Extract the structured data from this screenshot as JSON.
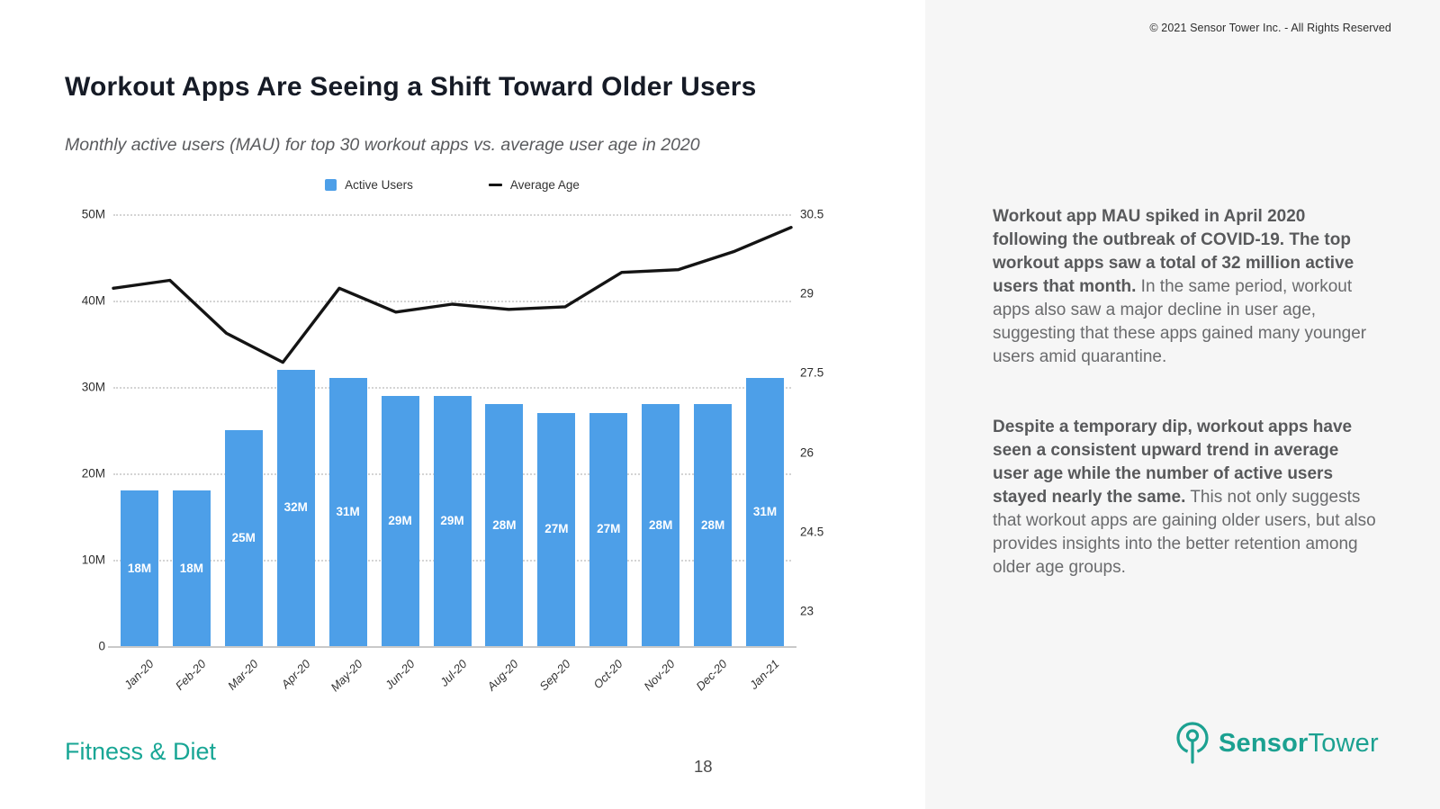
{
  "copyright": "© 2021 Sensor Tower Inc. - All Rights Reserved",
  "header": {
    "title": "Workout Apps Are Seeing a Shift Toward Older Users",
    "subtitle": "Monthly active users (MAU) for top 30 workout apps vs. average user age in 2020"
  },
  "chart_data": {
    "type": "bar+line",
    "title": "Monthly active users (MAU) for top 30 workout apps vs. average user age in 2020",
    "categories": [
      "Jan-20",
      "Feb-20",
      "Mar-20",
      "Apr-20",
      "May-20",
      "Jun-20",
      "Jul-20",
      "Aug-20",
      "Sep-20",
      "Oct-20",
      "Nov-20",
      "Dec-20",
      "Jan-21"
    ],
    "series": [
      {
        "name": "Active Users",
        "type": "bar",
        "axis": "left",
        "color": "#4D9FE8",
        "values_millions": [
          18,
          18,
          25,
          32,
          31,
          29,
          29,
          28,
          27,
          27,
          28,
          28,
          31
        ],
        "labels": [
          "18M",
          "18M",
          "25M",
          "32M",
          "31M",
          "29M",
          "29M",
          "28M",
          "27M",
          "27M",
          "28M",
          "28M",
          "31M"
        ]
      },
      {
        "name": "Average Age",
        "type": "line",
        "axis": "right",
        "color": "#141414",
        "values": [
          29.1,
          29.25,
          28.25,
          27.7,
          29.1,
          28.65,
          28.8,
          28.7,
          28.75,
          29.4,
          29.45,
          29.8,
          30.25
        ]
      }
    ],
    "left_axis": {
      "ticks": [
        "50M",
        "40M",
        "30M",
        "20M",
        "10M",
        "0"
      ],
      "min": 0,
      "max_millions": 50,
      "grid": "dotted"
    },
    "right_axis": {
      "ticks": [
        "30.5",
        "29",
        "27.5",
        "26",
        "24.5",
        "23"
      ],
      "min": 23,
      "max": 30.5,
      "step": 1.5
    },
    "legend": {
      "position": "top",
      "items": [
        "Active Users",
        "Average Age"
      ]
    }
  },
  "panel": {
    "paragraphs": [
      {
        "bold": "Workout app MAU spiked in April 2020 following the outbreak of COVID-19. The top workout apps saw a total of 32 million active users that month.",
        "rest": " In the same period, workout apps also saw a major decline in user age, suggesting that these apps gained many younger users amid quarantine."
      },
      {
        "bold": "Despite a temporary dip, workout apps have seen a consistent upward trend in average user age while the number of active users stayed nearly the same.",
        "rest": " This not only suggests that workout apps are gaining older users, but also provides insights into the better retention among older age groups."
      }
    ]
  },
  "footer": {
    "category": "Fitness & Diet",
    "page_number": "18",
    "logo": {
      "word1": "Sensor",
      "word2": "Tower"
    }
  },
  "colors": {
    "bar_blue": "#4D9FE8",
    "line_black": "#141414",
    "brand_teal": "#1CA191",
    "panel_gray": "#f6f6f6"
  }
}
